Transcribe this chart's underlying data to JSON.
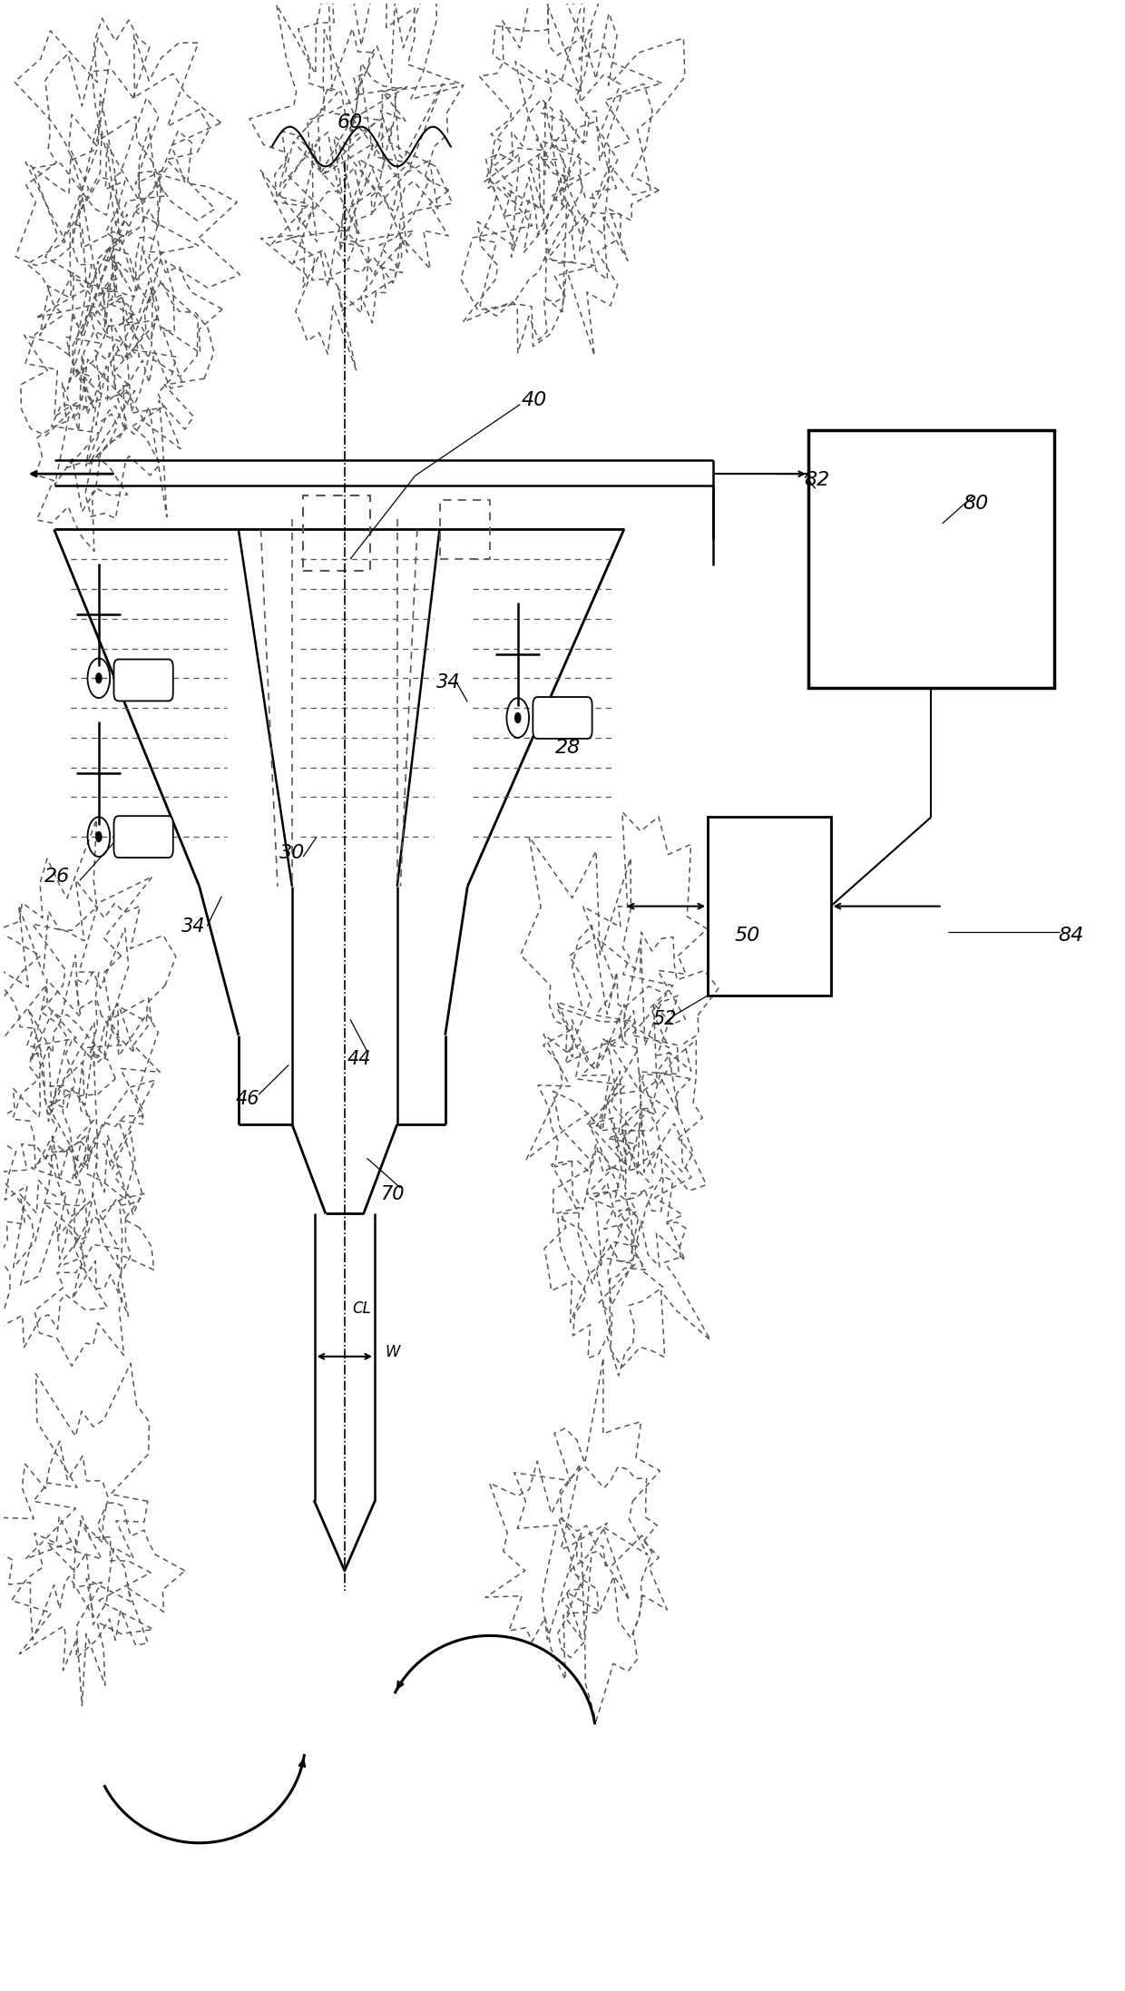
{
  "bg_color": "#ffffff",
  "line_color": "#000000",
  "dashed_color": "#555555",
  "fig_width": 12.4,
  "fig_height": 21.94,
  "dpi": 100
}
